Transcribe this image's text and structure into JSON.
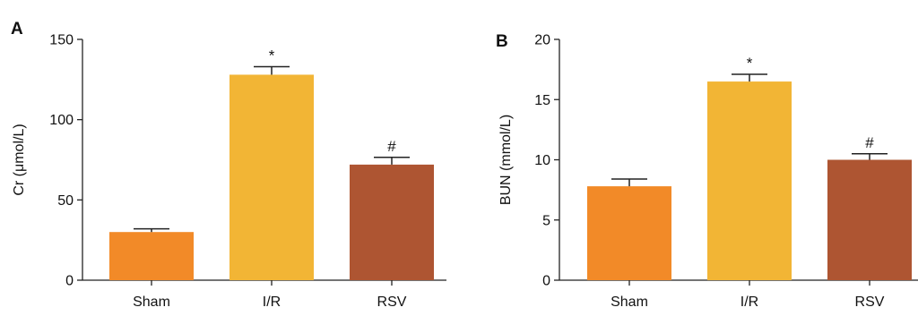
{
  "chart_data": [
    {
      "panel": "A",
      "type": "bar",
      "title": "",
      "xlabel": "",
      "ylabel": "Cr (μmol/L)",
      "categories": [
        "Sham",
        "I/R",
        "RSV"
      ],
      "values": [
        30,
        128,
        72
      ],
      "errors": [
        2,
        5,
        4.5
      ],
      "annotations": [
        "",
        "*",
        "#"
      ],
      "colors": [
        "#f28a28",
        "#f2b535",
        "#ae5532"
      ],
      "ylim": [
        0,
        150
      ],
      "yticks": [
        0,
        50,
        100,
        150
      ],
      "grid": false
    },
    {
      "panel": "B",
      "type": "bar",
      "title": "",
      "xlabel": "",
      "ylabel": "BUN (mmol/L)",
      "categories": [
        "Sham",
        "I/R",
        "RSV"
      ],
      "values": [
        7.8,
        16.5,
        10.0
      ],
      "errors": [
        0.6,
        0.6,
        0.5
      ],
      "annotations": [
        "",
        "*",
        "#"
      ],
      "colors": [
        "#f28a28",
        "#f2b535",
        "#ae5532"
      ],
      "ylim": [
        0,
        20
      ],
      "yticks": [
        0,
        5,
        10,
        15,
        20
      ],
      "grid": false
    }
  ]
}
